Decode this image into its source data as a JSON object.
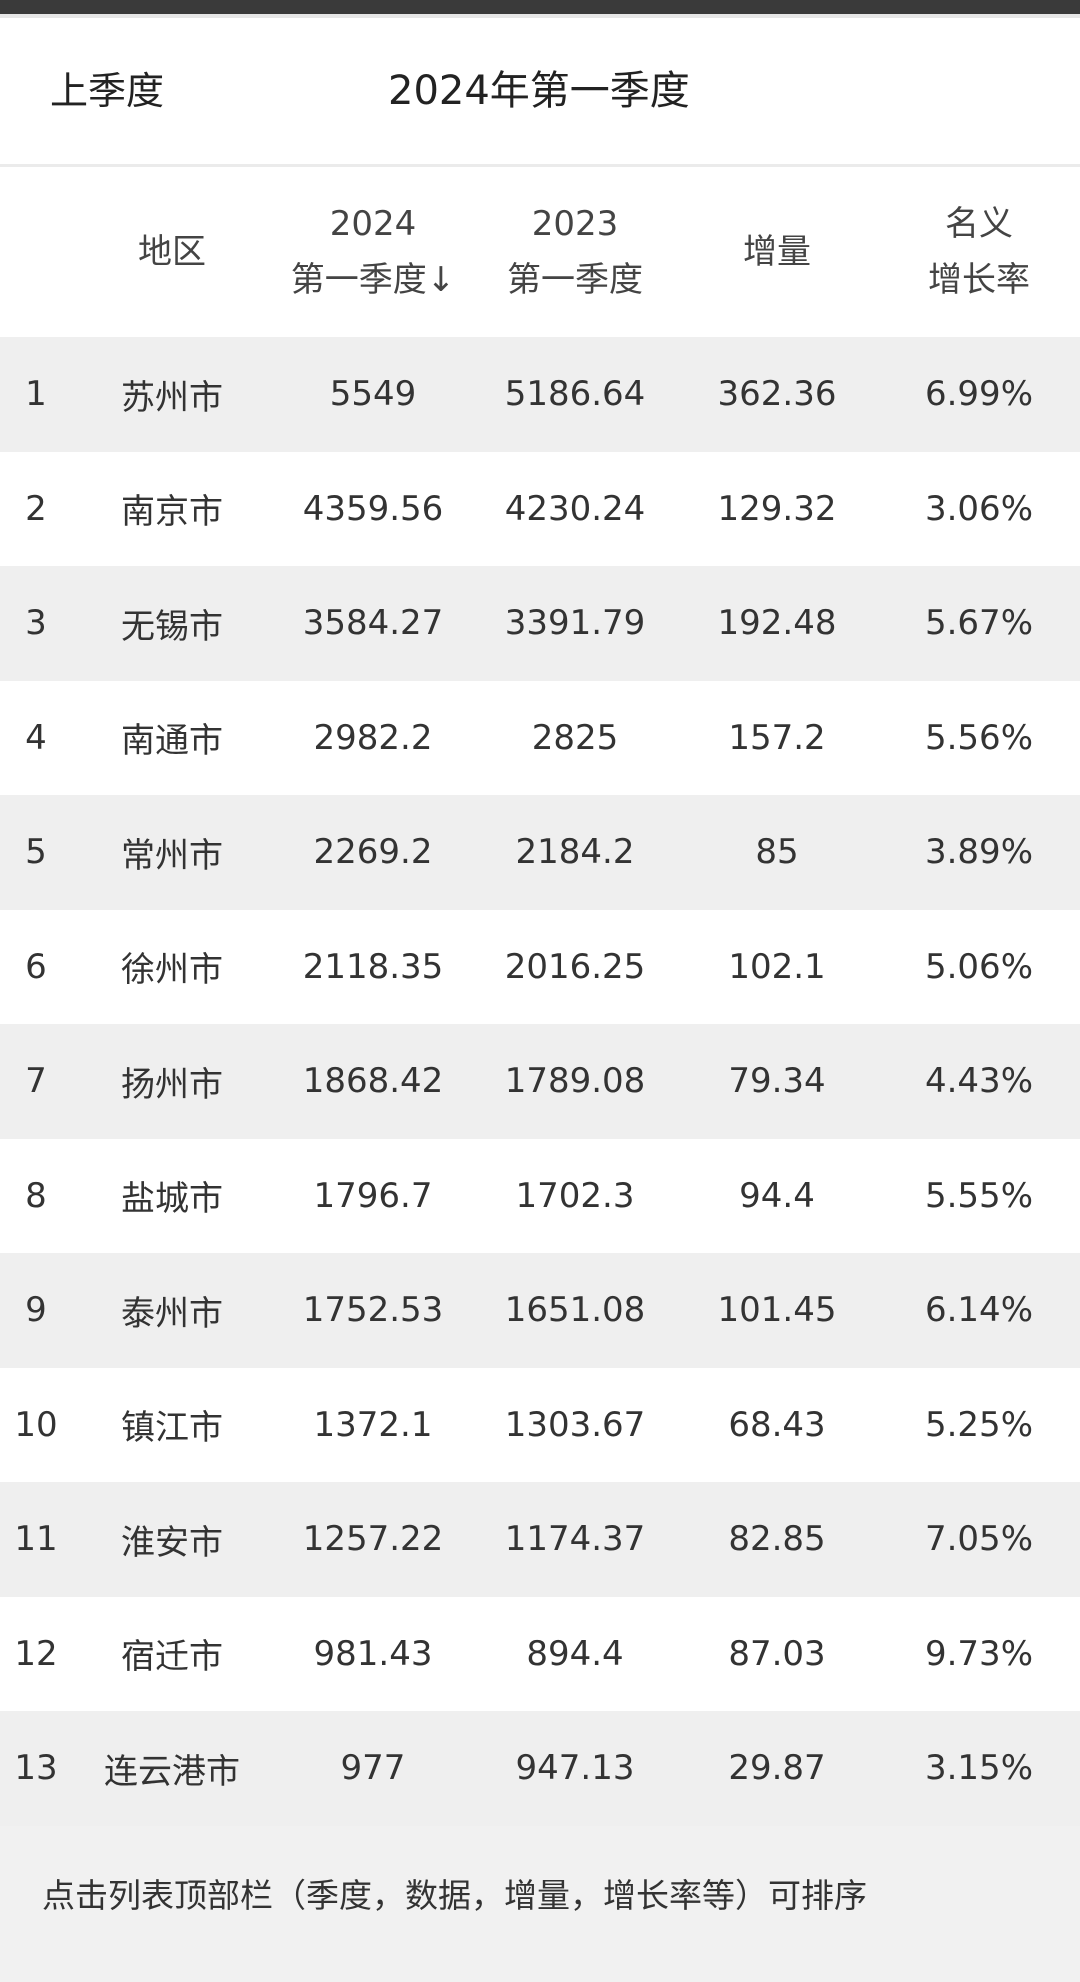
{
  "quarter_bar": {
    "prev_label": "上季度",
    "current_label": "2024年第一季度"
  },
  "table": {
    "headers": {
      "region": "地区",
      "q2024_line1": "2024",
      "q2024_line2": "第一季度↓",
      "q2023_line1": "2023",
      "q2023_line2": "第一季度",
      "increase": "增量",
      "growth_line1": "名义",
      "growth_line2": "增长率"
    },
    "rows": [
      {
        "rank": "1",
        "region": "苏州市",
        "q2024": "5549",
        "q2023": "5186.64",
        "increase": "362.36",
        "growth": "6.99%"
      },
      {
        "rank": "2",
        "region": "南京市",
        "q2024": "4359.56",
        "q2023": "4230.24",
        "increase": "129.32",
        "growth": "3.06%"
      },
      {
        "rank": "3",
        "region": "无锡市",
        "q2024": "3584.27",
        "q2023": "3391.79",
        "increase": "192.48",
        "growth": "5.67%"
      },
      {
        "rank": "4",
        "region": "南通市",
        "q2024": "2982.2",
        "q2023": "2825",
        "increase": "157.2",
        "growth": "5.56%"
      },
      {
        "rank": "5",
        "region": "常州市",
        "q2024": "2269.2",
        "q2023": "2184.2",
        "increase": "85",
        "growth": "3.89%"
      },
      {
        "rank": "6",
        "region": "徐州市",
        "q2024": "2118.35",
        "q2023": "2016.25",
        "increase": "102.1",
        "growth": "5.06%"
      },
      {
        "rank": "7",
        "region": "扬州市",
        "q2024": "1868.42",
        "q2023": "1789.08",
        "increase": "79.34",
        "growth": "4.43%"
      },
      {
        "rank": "8",
        "region": "盐城市",
        "q2024": "1796.7",
        "q2023": "1702.3",
        "increase": "94.4",
        "growth": "5.55%"
      },
      {
        "rank": "9",
        "region": "泰州市",
        "q2024": "1752.53",
        "q2023": "1651.08",
        "increase": "101.45",
        "growth": "6.14%"
      },
      {
        "rank": "10",
        "region": "镇江市",
        "q2024": "1372.1",
        "q2023": "1303.67",
        "increase": "68.43",
        "growth": "5.25%"
      },
      {
        "rank": "11",
        "region": "淮安市",
        "q2024": "1257.22",
        "q2023": "1174.37",
        "increase": "82.85",
        "growth": "7.05%"
      },
      {
        "rank": "12",
        "region": "宿迁市",
        "q2024": "981.43",
        "q2023": "894.4",
        "increase": "87.03",
        "growth": "9.73%"
      },
      {
        "rank": "13",
        "region": "连云港市",
        "q2024": "977",
        "q2023": "947.13",
        "increase": "29.87",
        "growth": "3.15%"
      }
    ]
  },
  "footer": {
    "hint": "点击列表顶部栏（季度，数据，增量，增长率等）可排序"
  },
  "colors": {
    "stripe": "#efefef",
    "topbar": "#3a3a3a",
    "footer_bg": "#f1f1f1"
  }
}
